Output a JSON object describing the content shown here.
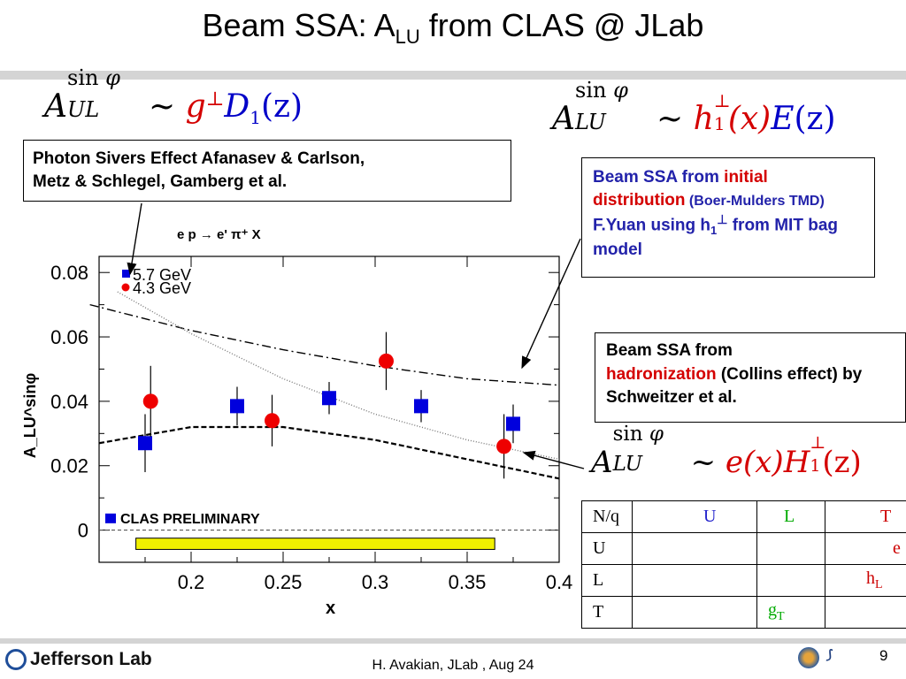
{
  "title": {
    "main": "Beam SSA: A",
    "sub": "LU",
    "rest": "  from CLAS @ JLab"
  },
  "formulas": {
    "aul": {
      "A": "A",
      "sup": "sin",
      "phi": "φ",
      "sub": "UL",
      "sim": "~",
      "g": "g",
      "perp": "⊥",
      "D": "D",
      "one": "1",
      "arg": "(z)"
    },
    "alu_h": {
      "A": "A",
      "sup": "sin",
      "phi": "φ",
      "sub": "LU",
      "sim": "~",
      "h": "h",
      "perp": "⊥",
      "one": "1",
      "x": "(x)",
      "E": "E",
      "z": "(z)"
    },
    "alu_e": {
      "A": "A",
      "sup": "sin",
      "phi": "φ",
      "sub": "LU",
      "sim": "~",
      "e": "e(x)",
      "H": "H",
      "perp": "⊥",
      "one": "1",
      "z": "(z)"
    }
  },
  "sivers_box": {
    "line1": "Photon Sivers Effect Afanasev & Carlson,",
    "line2": "Metz & Schlegel, Gamberg et al."
  },
  "boer_box": {
    "part1": "Beam SSA from ",
    "part2": "initial distribution",
    "part3": " (Boer-Mulders TMD)",
    "part4": "  F.Yuan using h",
    "sub": "1",
    "perp": "⊥",
    "part5": " from MIT bag model"
  },
  "collins_box": {
    "line1": "Beam SSA from",
    "red": "hadronization",
    "line2": "  (Collins effect) by Schweitzer et al."
  },
  "chart_data": {
    "type": "scatter",
    "title": "e p → e' π⁺ X",
    "xlabel": "x",
    "ylabel": "A_LU^sinφ",
    "xlim": [
      0.15,
      0.4
    ],
    "ylim": [
      -0.01,
      0.085
    ],
    "xticks": [
      "0.2",
      "0.25",
      "0.3",
      "0.35",
      "0.4"
    ],
    "yticks": [
      "0",
      "0.02",
      "0.04",
      "0.06",
      "0.08"
    ],
    "legend_placement": "top-left",
    "series": [
      {
        "name": "5.7 GeV",
        "marker": "square",
        "color": "#0000dd",
        "x": [
          0.175,
          0.225,
          0.275,
          0.325,
          0.375
        ],
        "y": [
          0.027,
          0.0385,
          0.041,
          0.0385,
          0.033
        ],
        "err": [
          0.009,
          0.006,
          0.005,
          0.005,
          0.006
        ]
      },
      {
        "name": "4.3 GeV",
        "marker": "circle",
        "color": "#ee0000",
        "x": [
          0.178,
          0.244,
          0.306,
          0.37
        ],
        "y": [
          0.04,
          0.034,
          0.0525,
          0.026
        ],
        "err": [
          0.011,
          0.008,
          0.009,
          0.01
        ]
      }
    ],
    "annotations": [
      "CLAS PRELIMINARY"
    ],
    "curves": [
      {
        "style": "dash-dot",
        "x": [
          0.145,
          0.2,
          0.25,
          0.3,
          0.35,
          0.4
        ],
        "y": [
          0.07,
          0.062,
          0.056,
          0.051,
          0.047,
          0.045
        ]
      },
      {
        "style": "dashed",
        "x": [
          0.15,
          0.2,
          0.25,
          0.3,
          0.35,
          0.4
        ],
        "y": [
          0.027,
          0.032,
          0.032,
          0.028,
          0.022,
          0.016
        ]
      },
      {
        "style": "dotted",
        "x": [
          0.16,
          0.2,
          0.25,
          0.3,
          0.35,
          0.4
        ],
        "y": [
          0.074,
          0.061,
          0.047,
          0.036,
          0.028,
          0.022
        ]
      }
    ],
    "systematic_band": {
      "x": [
        0.17,
        0.365
      ],
      "y": [
        -0.006,
        -0.0025
      ],
      "color": "#f0f000"
    }
  },
  "table": {
    "headers": [
      "N/q",
      "U",
      "L",
      "T"
    ],
    "header_colors": [
      "#000000",
      "#2222cc",
      "#00aa00",
      "#cc0000"
    ],
    "rows": [
      {
        "label": "U",
        "cells": [
          "",
          "",
          "e"
        ]
      },
      {
        "label": "L",
        "cells": [
          "",
          "",
          "h_L"
        ]
      },
      {
        "label": "T",
        "cells": [
          "",
          "g_T",
          ""
        ]
      }
    ]
  },
  "footer": {
    "logo": "Jefferson Lab",
    "text": "H. Avakian, JLab ,  Aug 24",
    "page": "9"
  }
}
